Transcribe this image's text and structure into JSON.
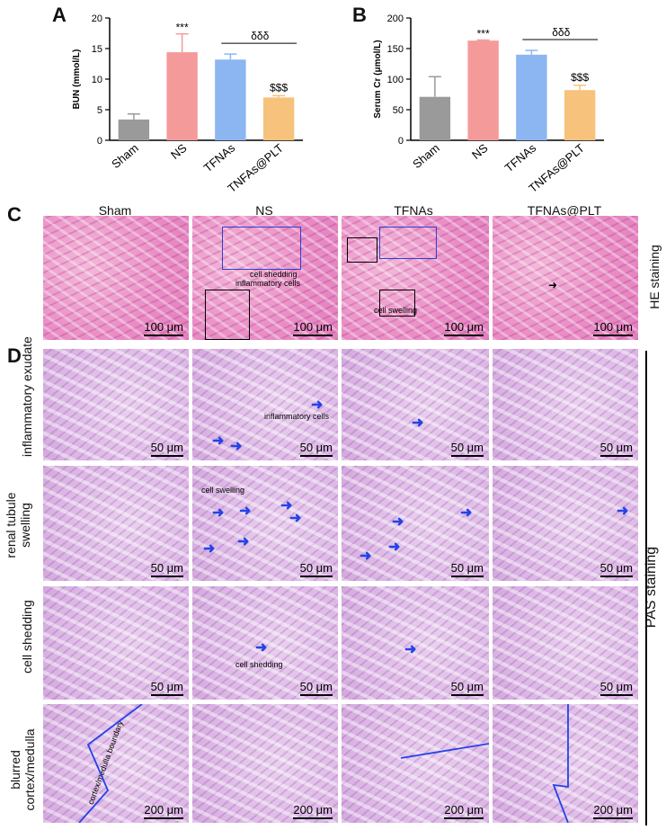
{
  "panels": {
    "a": "A",
    "b": "B",
    "c": "C",
    "d": "D"
  },
  "chart_data": [
    {
      "type": "bar",
      "categories": [
        "Sham",
        "NS",
        "TFNAs",
        "TNFAs@PLT"
      ],
      "values": [
        3.4,
        14.4,
        13.2,
        7.0
      ],
      "errors": [
        0.9,
        3.0,
        0.9,
        0.3
      ],
      "colors": [
        "#9a9a9a",
        "#f59a9a",
        "#8cb6f2",
        "#f6c27c"
      ],
      "ylabel": "BUN (mmol/L)",
      "ylim": [
        0,
        20
      ],
      "yticks": [
        0,
        5,
        10,
        15,
        20
      ],
      "annotations": {
        "ns": "***",
        "bracket": "δδδ",
        "last": "$$$"
      }
    },
    {
      "type": "bar",
      "categories": [
        "Sham",
        "NS",
        "TFNAs",
        "TNFAs@PLT"
      ],
      "values": [
        71,
        163,
        140,
        82
      ],
      "errors": [
        33,
        1,
        7,
        8
      ],
      "colors": [
        "#9a9a9a",
        "#f59a9a",
        "#8cb6f2",
        "#f6c27c"
      ],
      "ylabel": "Serum Cr (μmol/L)",
      "ylim": [
        0,
        200
      ],
      "yticks": [
        0,
        50,
        100,
        150,
        200
      ],
      "annotations": {
        "ns": "***",
        "bracket": "δδδ",
        "last": "$$$"
      }
    }
  ],
  "columns": [
    "Sham",
    "NS",
    "TFNAs",
    "TFNAs@PLT"
  ],
  "he": {
    "side_label": "HE staining",
    "scale": "100 μm",
    "notes": {
      "shedding": "cell shedding",
      "inflam": "inflammatory cells",
      "swelling": "cell swelling"
    }
  },
  "pas": {
    "side_label": "PAS staining",
    "rows": [
      {
        "label": "inflammatory exudate",
        "scale": "50 μm"
      },
      {
        "label": "renal tubule swelling",
        "scale": "50 μm"
      },
      {
        "label": "cell shedding",
        "scale": "50 μm"
      },
      {
        "label": "blurred cortex/medulla",
        "scale": "200 μm"
      }
    ],
    "notes": {
      "inflam": "inflammatory cells",
      "swelling": "cell swelling",
      "shedding": "cell shedding",
      "boundary": "cortex/medulla boundary"
    }
  }
}
